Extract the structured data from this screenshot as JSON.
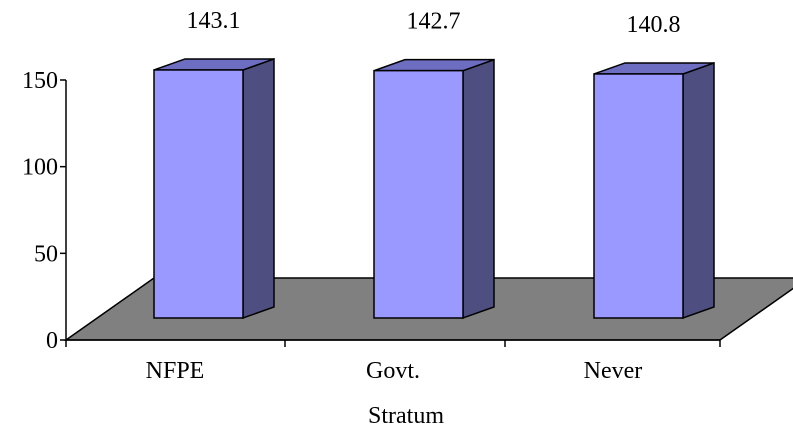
{
  "chart_data": {
    "type": "bar",
    "xlabel": "Stratum",
    "ylabel": "",
    "categories": [
      "NFPE",
      "Govt.",
      "Never"
    ],
    "values": [
      143.1,
      142.7,
      140.8
    ],
    "data_labels": [
      "143.1",
      "142.7",
      "140.8"
    ],
    "ylim": [
      0,
      150
    ],
    "yticks": [
      0,
      50,
      100,
      150
    ],
    "ytick_labels": [
      "0",
      "50",
      "100",
      "150"
    ],
    "grid": false,
    "legend": "none",
    "style": "3d-column"
  },
  "colors": {
    "bar_front": "#9999ff",
    "bar_side": "#4e4e80",
    "bar_top": "#6d6dc2",
    "floor": "#808080",
    "axis": "#000000"
  }
}
